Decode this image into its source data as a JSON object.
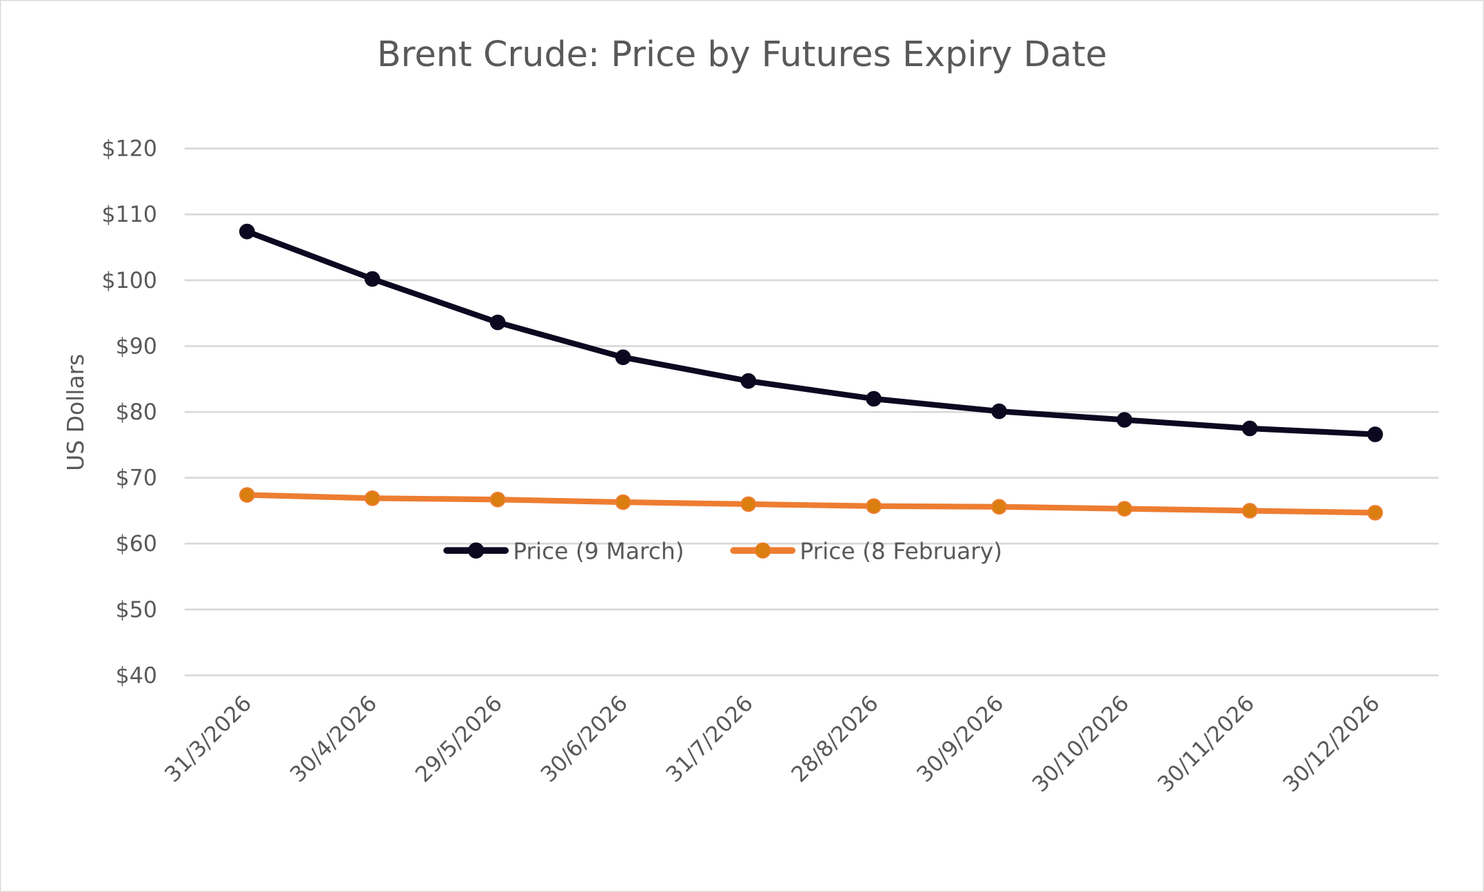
{
  "chart_data": {
    "type": "line",
    "title": "Brent Crude: Price by Futures Expiry Date",
    "xlabel": "",
    "ylabel": "US Dollars",
    "ylim": [
      40,
      120
    ],
    "yticks": [
      40,
      50,
      60,
      70,
      80,
      90,
      100,
      110,
      120
    ],
    "ytick_labels": [
      "$40",
      "$50",
      "$60",
      "$70",
      "$80",
      "$90",
      "$100",
      "$110",
      "$120"
    ],
    "grid": true,
    "legend_placement": "inside-center",
    "categories": [
      "31/3/2026",
      "30/4/2026",
      "29/5/2026",
      "30/6/2026",
      "31/7/2026",
      "28/8/2026",
      "30/9/2026",
      "30/10/2026",
      "30/11/2026",
      "30/12/2026"
    ],
    "series": [
      {
        "name": "Price (9 March)",
        "color": "#0b0820",
        "marker_color": "#0b0820",
        "values": [
          107.4,
          100.2,
          93.6,
          88.3,
          84.7,
          82.0,
          80.1,
          78.8,
          77.5,
          76.6
        ]
      },
      {
        "name": "Price (8 February)",
        "color": "#ed7d31",
        "marker_color": "#db7e10",
        "values": [
          67.4,
          66.9,
          66.7,
          66.3,
          66.0,
          65.7,
          65.6,
          65.3,
          65.0,
          64.7
        ]
      }
    ]
  }
}
